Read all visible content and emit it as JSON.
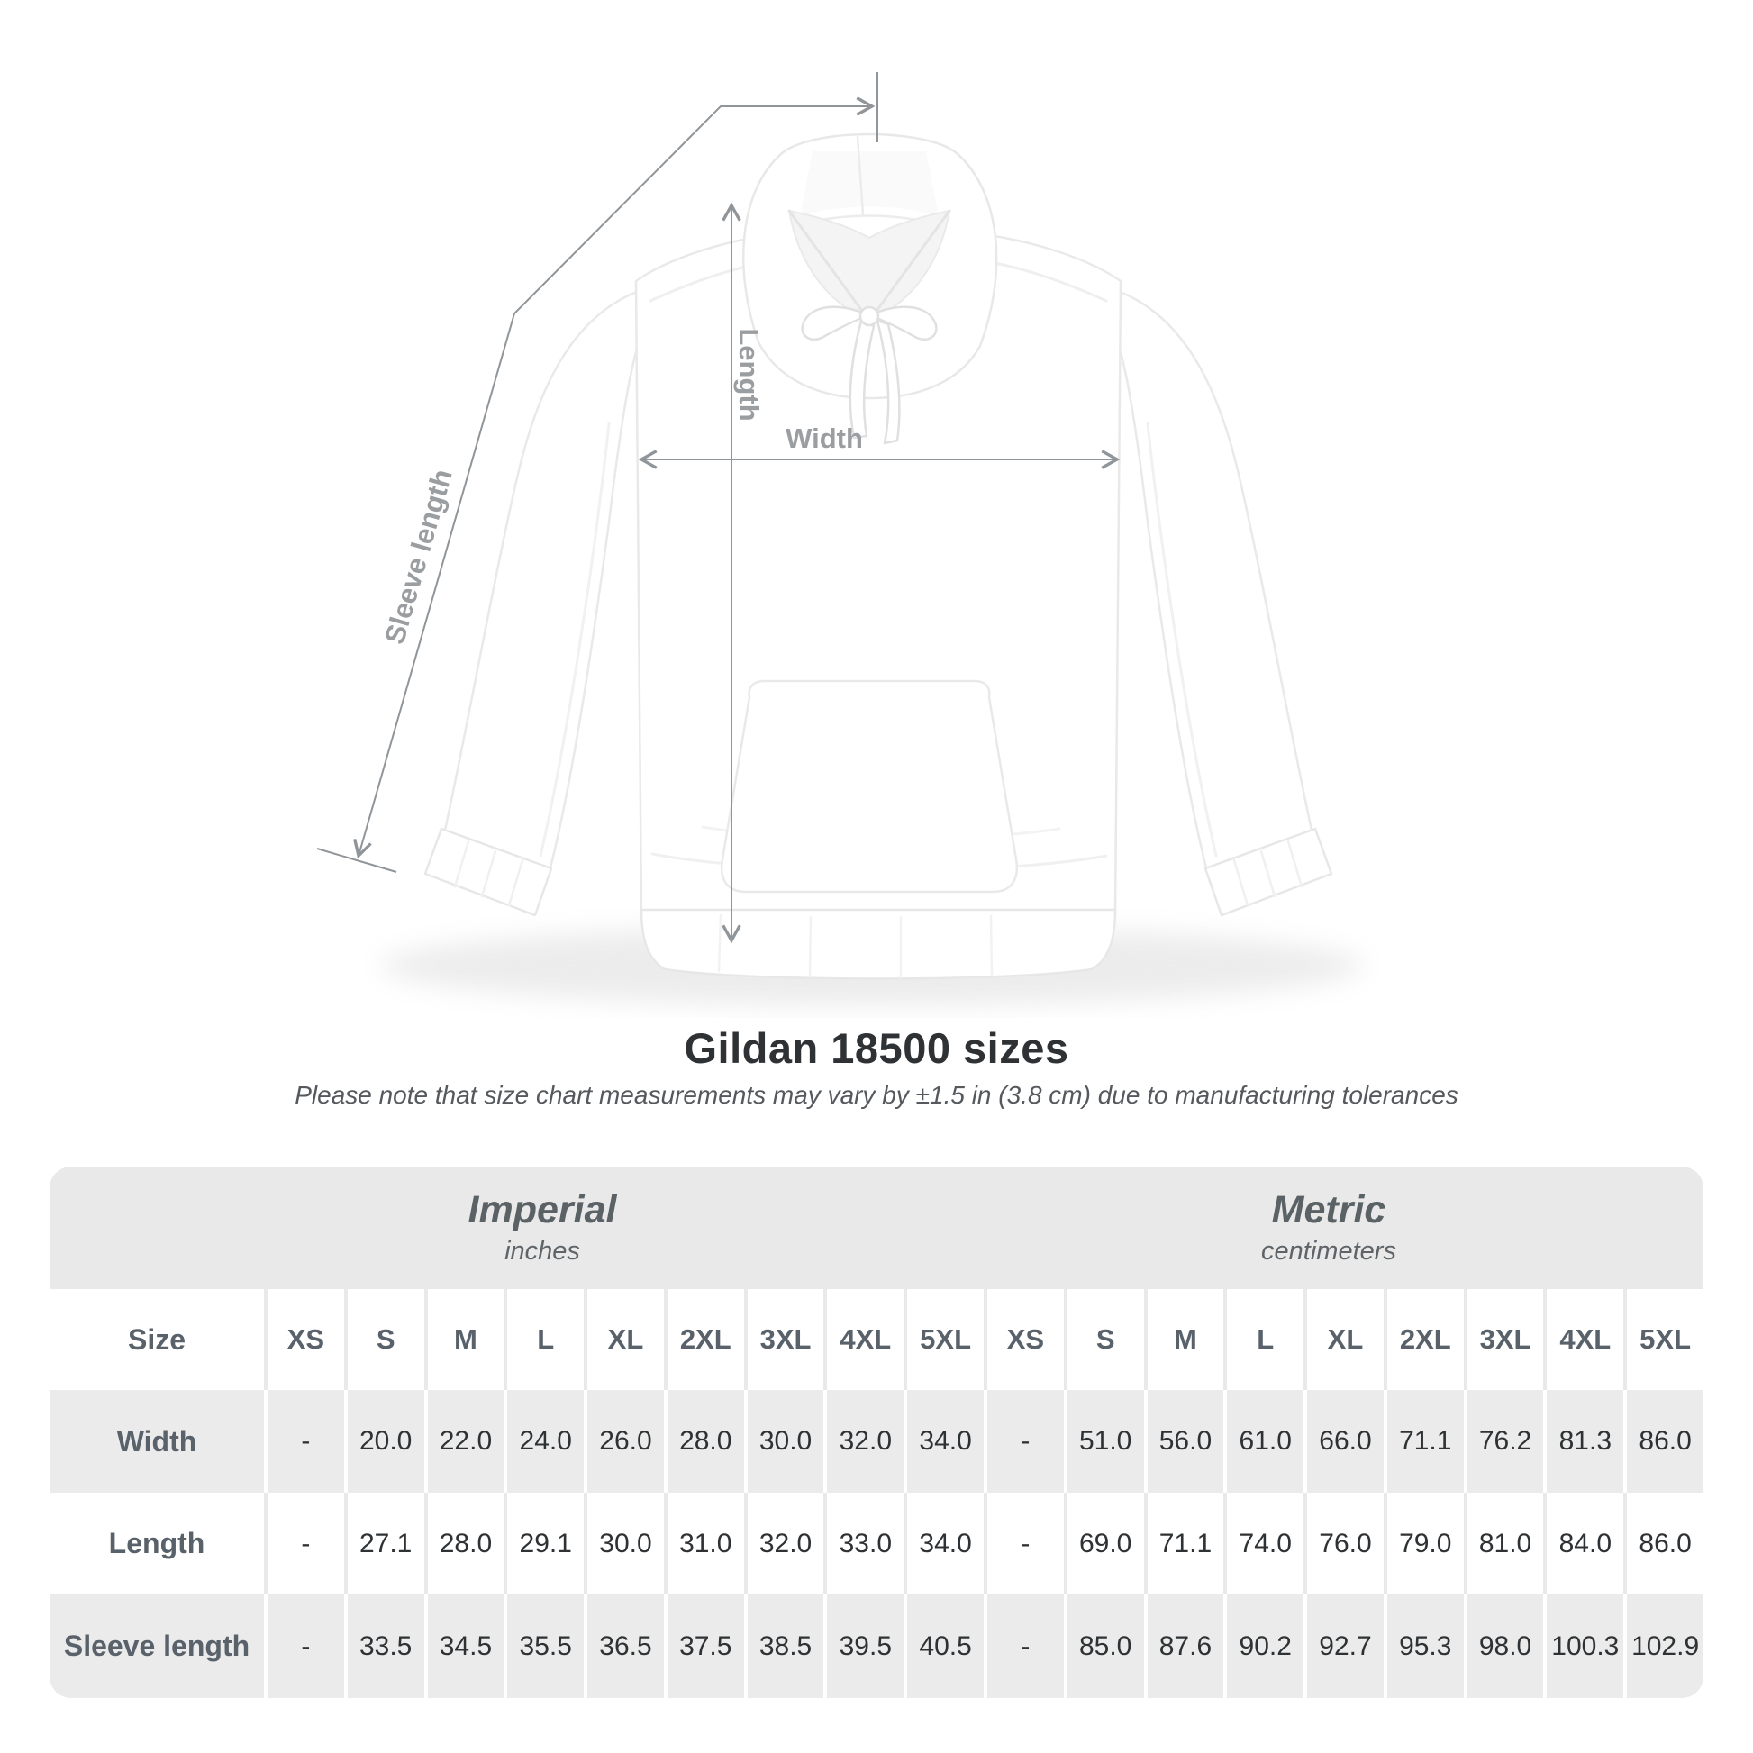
{
  "title": "Gildan 18500 sizes",
  "subtitle": "Please note that size chart measurements may vary by ±1.5 in (3.8 cm) due to manufacturing tolerances",
  "figure": {
    "product": "white pullover hoodie flat lay",
    "width_label": "Width",
    "length_label": "Length",
    "sleeve_label": "Sleeve length"
  },
  "colors": {
    "annotation_line": "#909599",
    "annotation_text": "#9b9ea1",
    "band_bg": "#e9e9e9",
    "row_alt_bg": "#ebebeb",
    "header_text": "#59626a",
    "data_text": "#2f3234",
    "title_text": "#2f3234"
  },
  "table": {
    "corner_label": "Size",
    "unit_groups": [
      {
        "name": "Imperial",
        "unit": "inches"
      },
      {
        "name": "Metric",
        "unit": "centimeters"
      }
    ],
    "size_headers": [
      "XS",
      "S",
      "M",
      "L",
      "XL",
      "2XL",
      "3XL",
      "4XL",
      "5XL",
      "XS",
      "S",
      "M",
      "L",
      "XL",
      "2XL",
      "3XL",
      "4XL",
      "5XL"
    ],
    "rows": [
      {
        "label": "Width",
        "values": [
          "-",
          "20.0",
          "22.0",
          "24.0",
          "26.0",
          "28.0",
          "30.0",
          "32.0",
          "34.0",
          "-",
          "51.0",
          "56.0",
          "61.0",
          "66.0",
          "71.1",
          "76.2",
          "81.3",
          "86.0"
        ]
      },
      {
        "label": "Length",
        "values": [
          "-",
          "27.1",
          "28.0",
          "29.1",
          "30.0",
          "31.0",
          "32.0",
          "33.0",
          "34.0",
          "-",
          "69.0",
          "71.1",
          "74.0",
          "76.0",
          "79.0",
          "81.0",
          "84.0",
          "86.0"
        ]
      },
      {
        "label": "Sleeve length",
        "values": [
          "-",
          "33.5",
          "34.5",
          "35.5",
          "36.5",
          "37.5",
          "38.5",
          "39.5",
          "40.5",
          "-",
          "85.0",
          "87.6",
          "90.2",
          "92.7",
          "95.3",
          "98.0",
          "100.3",
          "102.9"
        ]
      }
    ]
  },
  "chart_data": {
    "type": "table",
    "title": "Gildan 18500 sizes",
    "column_groups": [
      "Imperial (inches)",
      "Metric (centimeters)"
    ],
    "columns": [
      "XS",
      "S",
      "M",
      "L",
      "XL",
      "2XL",
      "3XL",
      "4XL",
      "5XL"
    ],
    "rows": [
      {
        "measure": "Width",
        "imperial": [
          null,
          20.0,
          22.0,
          24.0,
          26.0,
          28.0,
          30.0,
          32.0,
          34.0
        ],
        "metric": [
          null,
          51.0,
          56.0,
          61.0,
          66.0,
          71.1,
          76.2,
          81.3,
          86.0
        ]
      },
      {
        "measure": "Length",
        "imperial": [
          null,
          27.1,
          28.0,
          29.1,
          30.0,
          31.0,
          32.0,
          33.0,
          34.0
        ],
        "metric": [
          null,
          69.0,
          71.1,
          74.0,
          76.0,
          79.0,
          81.0,
          84.0,
          86.0
        ]
      },
      {
        "measure": "Sleeve length",
        "imperial": [
          null,
          33.5,
          34.5,
          35.5,
          36.5,
          37.5,
          38.5,
          39.5,
          40.5
        ],
        "metric": [
          null,
          85.0,
          87.6,
          90.2,
          92.7,
          95.3,
          98.0,
          100.3,
          102.9
        ]
      }
    ]
  }
}
